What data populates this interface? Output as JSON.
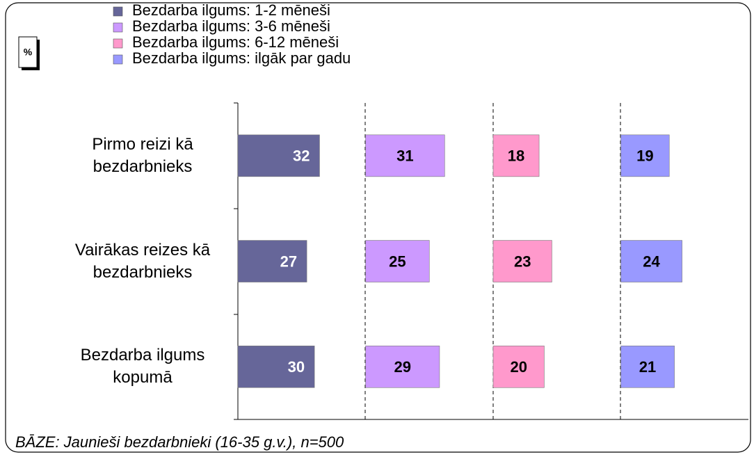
{
  "chart_data": {
    "type": "bar",
    "orientation": "horizontal",
    "layout": "panels",
    "unit_label": "%",
    "categories": [
      "Pirmo reizi kā bezdarbnieks",
      "Vairākas reizes kā bezdarbnieks",
      "Bezdarba ilgums kopumā"
    ],
    "series": [
      {
        "name": "Bezdarba ilgums: 1-2 mēneši",
        "color": "#666699",
        "values": [
          32,
          27,
          30
        ]
      },
      {
        "name": "Bezdarba ilgums: 3-6 mēneši",
        "color": "#cc99ff",
        "values": [
          31,
          25,
          29
        ]
      },
      {
        "name": "Bezdarba ilgums: 6-12 mēneši",
        "color": "#ff99cc",
        "values": [
          18,
          23,
          20
        ]
      },
      {
        "name": "Bezdarba ilgums: ilgāk par gadu",
        "color": "#9999ff",
        "values": [
          19,
          24,
          21
        ]
      }
    ],
    "xlim": [
      0,
      50
    ],
    "legend": "top-left",
    "note": "BĀZE: Jaunieši bezdarbnieki (16-35 g.v.), n=500"
  }
}
